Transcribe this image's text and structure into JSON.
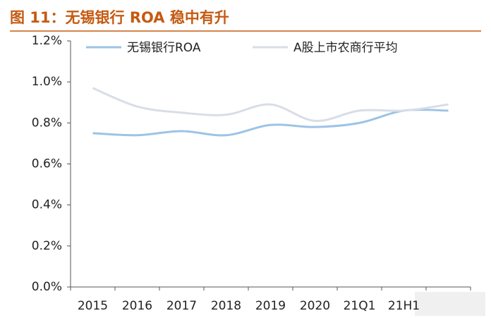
{
  "chart_data": {
    "type": "line",
    "title": "图 11：无锡银行 ROA 稳中有升",
    "categories": [
      "2015",
      "2016",
      "2017",
      "2018",
      "2019",
      "2020",
      "21Q1",
      "21H1",
      null
    ],
    "series": [
      {
        "name": "无锡银行ROA",
        "color": "#9dc3e6",
        "values": [
          0.75,
          0.74,
          0.76,
          0.74,
          0.79,
          0.78,
          0.8,
          0.86,
          0.86
        ]
      },
      {
        "name": "A股上市农商行平均",
        "color": "#d9dde8",
        "values": [
          0.97,
          0.88,
          0.85,
          0.84,
          0.89,
          0.81,
          0.86,
          0.86,
          0.89
        ]
      }
    ],
    "ylim": [
      0,
      1.2
    ],
    "yticks": [
      {
        "value": 0,
        "label": "0.0%"
      },
      {
        "value": 0.2,
        "label": "0.2%"
      },
      {
        "value": 0.4,
        "label": "0.4%"
      },
      {
        "value": 0.6,
        "label": "0.6%"
      },
      {
        "value": 0.8,
        "label": "0.8%"
      },
      {
        "value": 1.0,
        "label": "1.0%"
      },
      {
        "value": 1.2,
        "label": "1.2%"
      }
    ],
    "legend": "top"
  }
}
